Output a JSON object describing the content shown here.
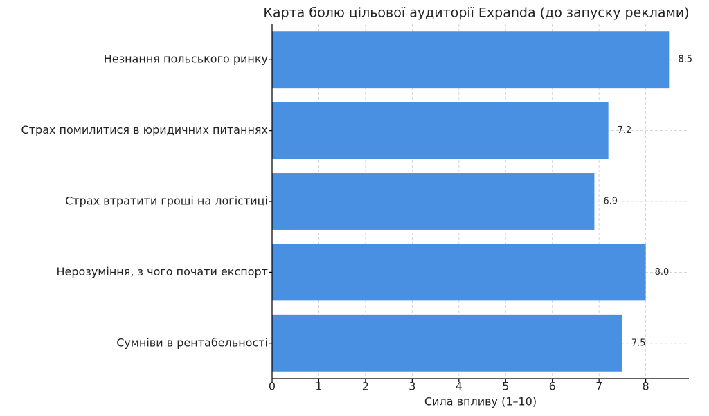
{
  "chart_data": {
    "type": "barh",
    "title": "Карта болю цільової аудиторії Expanda (до запуску реклами)",
    "xlabel": "Сила впливу (1–10)",
    "categories": [
      "Незнання польського ринку",
      "Страх помилитися в юридичних питаннях",
      "Страх втратити гроші на логістиці",
      "Нерозуміння, з чого почати експорт",
      "Сумніви в рентабельності"
    ],
    "values": [
      8.5,
      7.2,
      6.9,
      8.0,
      7.5
    ],
    "value_labels": [
      "8.5",
      "7.2",
      "6.9",
      "8.0",
      "7.5"
    ],
    "color": "#4a90e2",
    "xlim": [
      0,
      8.925
    ],
    "xticks": [
      0,
      1,
      2,
      3,
      4,
      5,
      6,
      7,
      8
    ],
    "grid": true
  }
}
